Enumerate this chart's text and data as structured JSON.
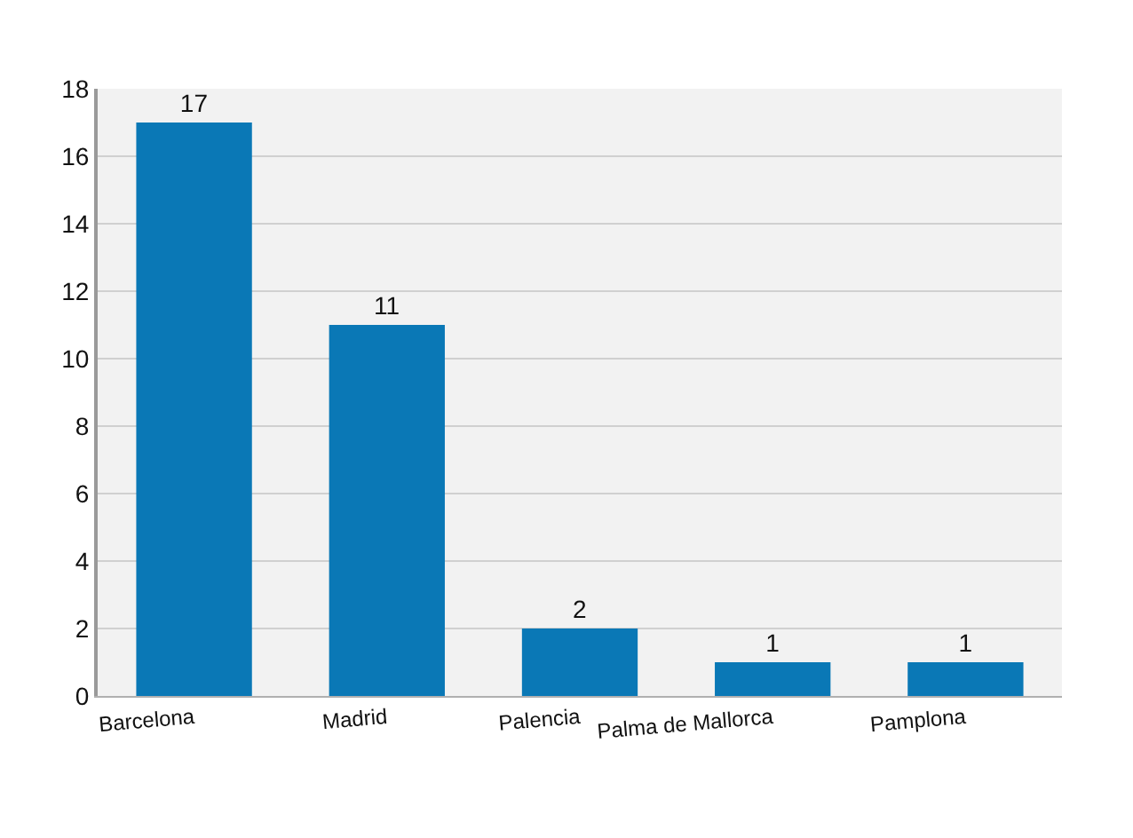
{
  "chart_data": {
    "type": "bar",
    "categories": [
      "Barcelona",
      "Madrid",
      "Palencia",
      "Palma de Mallorca",
      "Pamplona"
    ],
    "values": [
      17,
      11,
      2,
      1,
      1
    ],
    "color": "#0a78b6",
    "ylim": [
      0,
      18
    ],
    "yticks": [
      0,
      2,
      4,
      6,
      8,
      10,
      12,
      14,
      16,
      18
    ],
    "grid": "y",
    "data_labels": true
  }
}
